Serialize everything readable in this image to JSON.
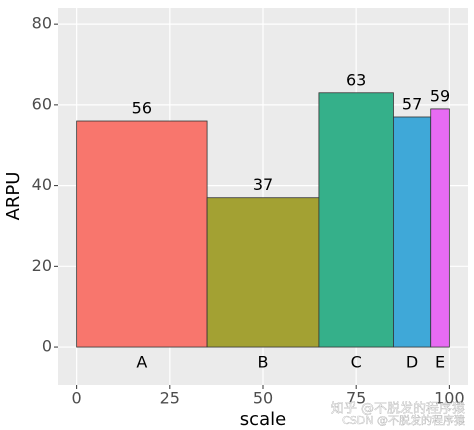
{
  "chart_data": {
    "type": "mekko",
    "x_label": "scale",
    "y_label": "ARPU",
    "categories": [
      "A",
      "B",
      "C",
      "D",
      "E"
    ],
    "xmin": [
      0,
      35,
      65,
      85,
      95
    ],
    "xmax": [
      35,
      65,
      85,
      95,
      100
    ],
    "values": [
      56,
      37,
      63,
      57,
      59
    ],
    "colors": [
      "#f8766d",
      "#a3a133",
      "#35b08a",
      "#3fa8d8",
      "#e76bf3"
    ],
    "xlim": [
      -5,
      105
    ],
    "ylim": [
      -9.4,
      84
    ],
    "xticks": [
      0,
      25,
      50,
      75,
      100
    ],
    "yticks": [
      0,
      20,
      40,
      60,
      80
    ],
    "grid": true,
    "annotations": [
      "知乎 @不脱发的程序猿",
      "CSDN @不脱发的程序猿"
    ]
  }
}
